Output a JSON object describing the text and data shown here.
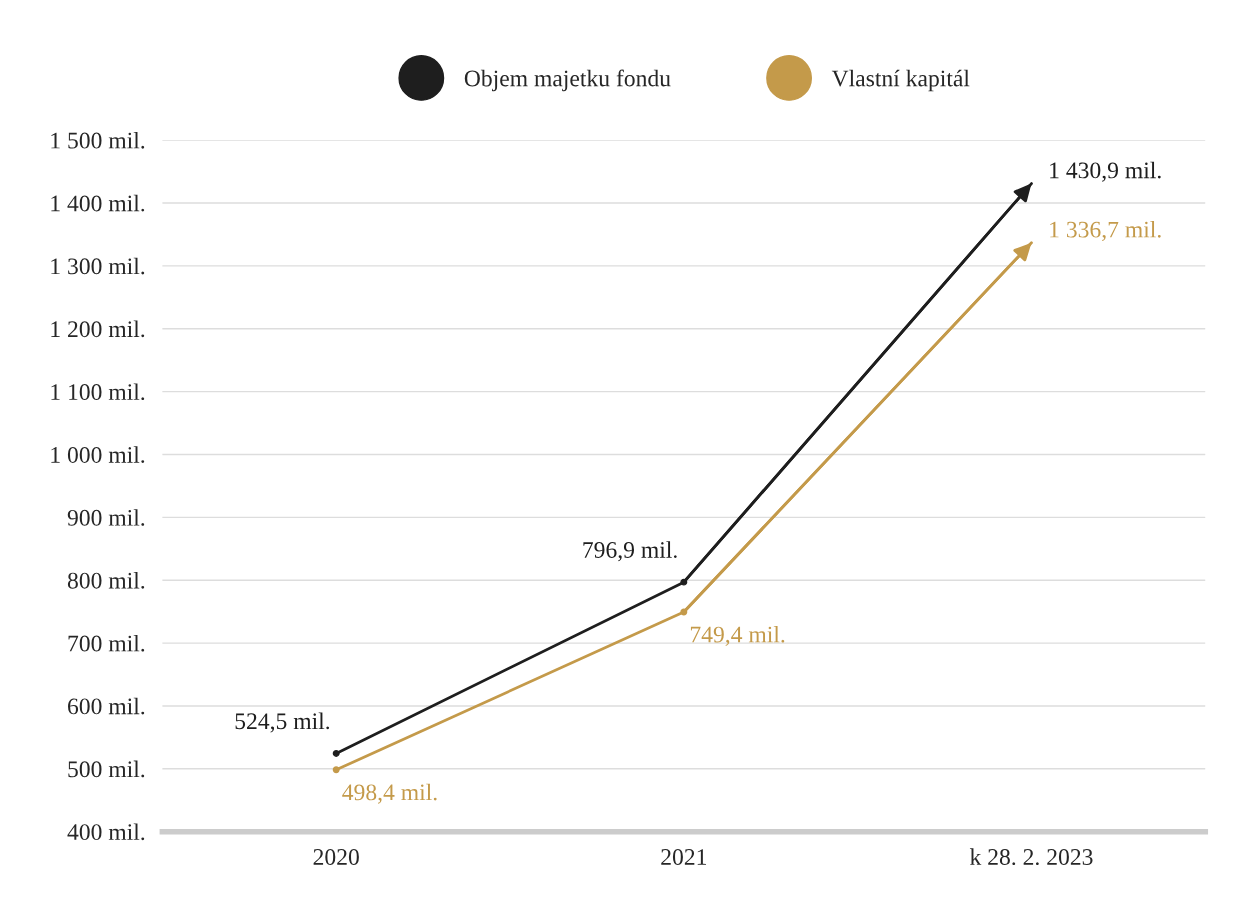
{
  "chart_data": {
    "type": "line",
    "categories": [
      "2020",
      "2021",
      "k 28. 2. 2023"
    ],
    "series": [
      {
        "name": "Objem majetku fondu",
        "color": "#1e1e1e",
        "values": [
          524.5,
          796.9,
          1430.9
        ],
        "value_labels": [
          "524,5 mil.",
          "796,9 mil.",
          "1 430,9 mil."
        ]
      },
      {
        "name": "Vlastní kapitál",
        "color": "#c49a4a",
        "values": [
          498.4,
          749.4,
          1336.7
        ],
        "value_labels": [
          "498,4 mil.",
          "749,4 mil.",
          "1 336,7 mil."
        ]
      }
    ],
    "ylim": [
      400,
      1500
    ],
    "yticks": [
      {
        "value": 400,
        "label": "400 mil."
      },
      {
        "value": 500,
        "label": "500 mil."
      },
      {
        "value": 600,
        "label": "600 mil."
      },
      {
        "value": 700,
        "label": "700 mil."
      },
      {
        "value": 800,
        "label": "800 mil."
      },
      {
        "value": 900,
        "label": "900 mil."
      },
      {
        "value": 1000,
        "label": "1 000 mil."
      },
      {
        "value": 1100,
        "label": "1 100 mil."
      },
      {
        "value": 1200,
        "label": "1 200 mil."
      },
      {
        "value": 1300,
        "label": "1 300 mil."
      },
      {
        "value": 1400,
        "label": "1 400 mil."
      },
      {
        "value": 1500,
        "label": "1 500 mil."
      }
    ],
    "grid": "y",
    "legend": "top",
    "marker": "circle",
    "line_style": "solid"
  }
}
